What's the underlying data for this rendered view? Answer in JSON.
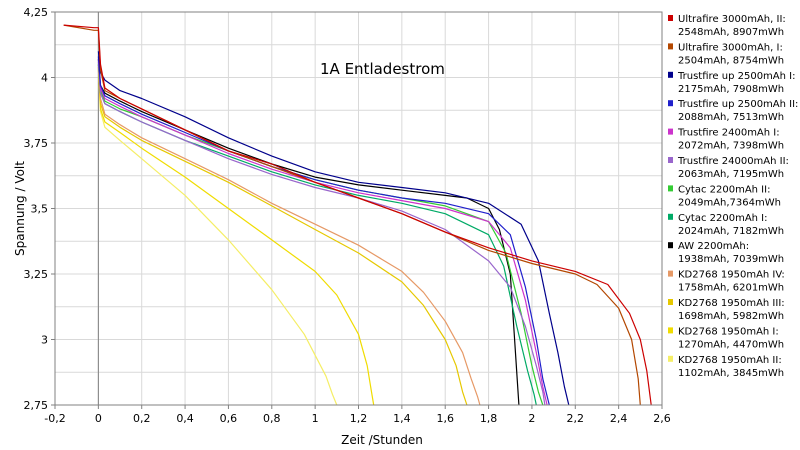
{
  "chart_data": {
    "type": "line",
    "title": "",
    "annotation": "1A Entladestrom",
    "xlabel": "Zeit /Stunden",
    "ylabel": "Spannung / Volt",
    "xlim": [
      -0.2,
      2.6
    ],
    "ylim": [
      2.75,
      4.25
    ],
    "x_ticks": [
      "-0,2",
      "0",
      "0,2",
      "0,4",
      "0,6",
      "0,8",
      "1",
      "1,2",
      "1,4",
      "1,6",
      "1,8",
      "2",
      "2,2",
      "2,4",
      "2,6"
    ],
    "y_ticks": [
      "2,75",
      "3",
      "3,25",
      "3,5",
      "3,75",
      "4",
      "4,25"
    ],
    "grid": true,
    "legend_position": "right",
    "series": [
      {
        "name": "Ultrafire 3000mAh, II: 2548mAh, 8907mWh",
        "color": "#cc0000",
        "x": [
          -0.16,
          -0.02,
          0.0,
          0.01,
          0.03,
          0.1,
          0.2,
          0.4,
          0.6,
          0.8,
          1.0,
          1.2,
          1.4,
          1.6,
          1.8,
          2.0,
          2.2,
          2.35,
          2.45,
          2.5,
          2.53,
          2.55
        ],
        "y": [
          4.2,
          4.19,
          4.19,
          4.05,
          3.96,
          3.92,
          3.88,
          3.8,
          3.72,
          3.67,
          3.6,
          3.54,
          3.48,
          3.41,
          3.35,
          3.3,
          3.26,
          3.21,
          3.1,
          3.0,
          2.88,
          2.75
        ]
      },
      {
        "name": "Ultrafire 3000mAh, I: 2504mAh, 8754mWh",
        "color": "#b34700",
        "x": [
          -0.16,
          -0.02,
          0.0,
          0.01,
          0.03,
          0.1,
          0.2,
          0.4,
          0.6,
          0.8,
          1.0,
          1.2,
          1.4,
          1.6,
          1.8,
          2.0,
          2.2,
          2.3,
          2.4,
          2.46,
          2.49,
          2.5
        ],
        "y": [
          4.2,
          4.18,
          4.18,
          4.03,
          3.95,
          3.92,
          3.88,
          3.8,
          3.72,
          3.66,
          3.6,
          3.54,
          3.48,
          3.41,
          3.34,
          3.29,
          3.25,
          3.21,
          3.12,
          3.0,
          2.85,
          2.75
        ]
      },
      {
        "name": "Trustfire up 2500mAh I: 2175mAh, 7908mWh",
        "color": "#00008b",
        "x": [
          0.0,
          0.01,
          0.03,
          0.1,
          0.2,
          0.4,
          0.6,
          0.8,
          1.0,
          1.2,
          1.4,
          1.6,
          1.8,
          1.95,
          2.03,
          2.08,
          2.12,
          2.15,
          2.17
        ],
        "y": [
          4.1,
          4.02,
          3.99,
          3.95,
          3.92,
          3.85,
          3.77,
          3.7,
          3.64,
          3.6,
          3.58,
          3.56,
          3.52,
          3.44,
          3.3,
          3.1,
          2.95,
          2.82,
          2.75
        ]
      },
      {
        "name": "Trustfire up 2500mAh II: 2088mAh, 7513mWh",
        "color": "#2020cc",
        "x": [
          0.0,
          0.01,
          0.03,
          0.1,
          0.2,
          0.4,
          0.6,
          0.8,
          1.0,
          1.2,
          1.4,
          1.6,
          1.8,
          1.9,
          1.97,
          2.02,
          2.05,
          2.08
        ],
        "y": [
          4.08,
          3.97,
          3.93,
          3.9,
          3.86,
          3.79,
          3.72,
          3.66,
          3.61,
          3.57,
          3.54,
          3.52,
          3.48,
          3.4,
          3.2,
          3.0,
          2.85,
          2.75
        ]
      },
      {
        "name": "Trustfire 2400mAh I: 2072mAh, 7398mWh",
        "color": "#cc33cc",
        "x": [
          0.0,
          0.01,
          0.03,
          0.1,
          0.2,
          0.4,
          0.6,
          0.8,
          1.0,
          1.2,
          1.4,
          1.6,
          1.8,
          1.9,
          1.97,
          2.02,
          2.05,
          2.07
        ],
        "y": [
          4.07,
          3.96,
          3.92,
          3.89,
          3.85,
          3.78,
          3.71,
          3.65,
          3.6,
          3.56,
          3.53,
          3.5,
          3.45,
          3.35,
          3.15,
          2.95,
          2.82,
          2.75
        ]
      },
      {
        "name": "Trustfire 24000mAh II: 2063mAh, 7195mWh",
        "color": "#9966cc",
        "x": [
          0.0,
          0.01,
          0.03,
          0.1,
          0.2,
          0.4,
          0.6,
          0.8,
          1.0,
          1.2,
          1.4,
          1.6,
          1.8,
          1.9,
          1.97,
          2.02,
          2.05,
          2.06
        ],
        "y": [
          4.06,
          3.94,
          3.9,
          3.87,
          3.83,
          3.76,
          3.69,
          3.63,
          3.58,
          3.54,
          3.49,
          3.42,
          3.3,
          3.2,
          3.05,
          2.9,
          2.8,
          2.75
        ]
      },
      {
        "name": "Cytac 2200mAh II: 2049mAh,7364mWh",
        "color": "#33cc33",
        "x": [
          0.0,
          0.01,
          0.03,
          0.1,
          0.2,
          0.4,
          0.6,
          0.8,
          1.0,
          1.2,
          1.4,
          1.6,
          1.8,
          1.88,
          1.95,
          2.0,
          2.03,
          2.05
        ],
        "y": [
          4.05,
          3.95,
          3.91,
          3.88,
          3.85,
          3.78,
          3.72,
          3.66,
          3.61,
          3.57,
          3.54,
          3.51,
          3.45,
          3.33,
          3.1,
          2.9,
          2.8,
          2.75
        ]
      },
      {
        "name": "Cytac 2200mAh I: 2024mAh, 7182mWh",
        "color": "#00aa66",
        "x": [
          0.0,
          0.01,
          0.03,
          0.1,
          0.2,
          0.4,
          0.6,
          0.8,
          1.0,
          1.2,
          1.4,
          1.6,
          1.8,
          1.87,
          1.93,
          1.98,
          2.01,
          2.02
        ],
        "y": [
          4.05,
          3.94,
          3.9,
          3.87,
          3.83,
          3.76,
          3.7,
          3.64,
          3.59,
          3.55,
          3.52,
          3.48,
          3.4,
          3.28,
          3.05,
          2.88,
          2.79,
          2.75
        ]
      },
      {
        "name": "AW 2200mAh: 1938mAh, 7039mWh",
        "color": "#000000",
        "x": [
          0.0,
          0.01,
          0.03,
          0.1,
          0.2,
          0.4,
          0.6,
          0.8,
          1.0,
          1.2,
          1.4,
          1.6,
          1.7,
          1.8,
          1.85,
          1.9,
          1.92,
          1.94
        ],
        "y": [
          4.07,
          3.97,
          3.94,
          3.91,
          3.87,
          3.8,
          3.73,
          3.67,
          3.62,
          3.59,
          3.57,
          3.55,
          3.54,
          3.5,
          3.42,
          3.25,
          3.0,
          2.75
        ]
      },
      {
        "name": "KD2768 1950mAh IV: 1758mAh, 6201mWh",
        "color": "#e69966",
        "x": [
          0.0,
          0.01,
          0.03,
          0.1,
          0.2,
          0.4,
          0.6,
          0.8,
          1.0,
          1.2,
          1.4,
          1.5,
          1.6,
          1.68,
          1.72,
          1.75,
          1.76
        ],
        "y": [
          4.04,
          3.92,
          3.86,
          3.82,
          3.77,
          3.69,
          3.61,
          3.52,
          3.44,
          3.36,
          3.26,
          3.18,
          3.07,
          2.95,
          2.85,
          2.78,
          2.75
        ]
      },
      {
        "name": "KD2768 1950mAh III: 1698mAh, 5982mWh",
        "color": "#e6c800",
        "x": [
          0.0,
          0.01,
          0.03,
          0.1,
          0.2,
          0.4,
          0.6,
          0.8,
          1.0,
          1.2,
          1.4,
          1.5,
          1.6,
          1.65,
          1.68,
          1.7
        ],
        "y": [
          4.04,
          3.9,
          3.85,
          3.81,
          3.76,
          3.68,
          3.6,
          3.51,
          3.42,
          3.33,
          3.22,
          3.13,
          3.0,
          2.9,
          2.8,
          2.75
        ]
      },
      {
        "name": "KD2768 1950mAh I: 1270mAh, 4470mWh",
        "color": "#f0dc00",
        "x": [
          0.0,
          0.01,
          0.03,
          0.1,
          0.2,
          0.4,
          0.6,
          0.8,
          1.0,
          1.1,
          1.2,
          1.24,
          1.26,
          1.27
        ],
        "y": [
          4.03,
          3.88,
          3.83,
          3.79,
          3.73,
          3.62,
          3.5,
          3.38,
          3.26,
          3.17,
          3.02,
          2.9,
          2.8,
          2.75
        ]
      },
      {
        "name": "KD2768 1950mAh II: 1102mAh, 3845mWh",
        "color": "#f5ee66",
        "x": [
          0.0,
          0.01,
          0.03,
          0.1,
          0.2,
          0.4,
          0.6,
          0.8,
          0.95,
          1.05,
          1.08,
          1.1
        ],
        "y": [
          4.03,
          3.87,
          3.81,
          3.76,
          3.69,
          3.55,
          3.38,
          3.19,
          3.02,
          2.86,
          2.79,
          2.75
        ]
      }
    ]
  }
}
